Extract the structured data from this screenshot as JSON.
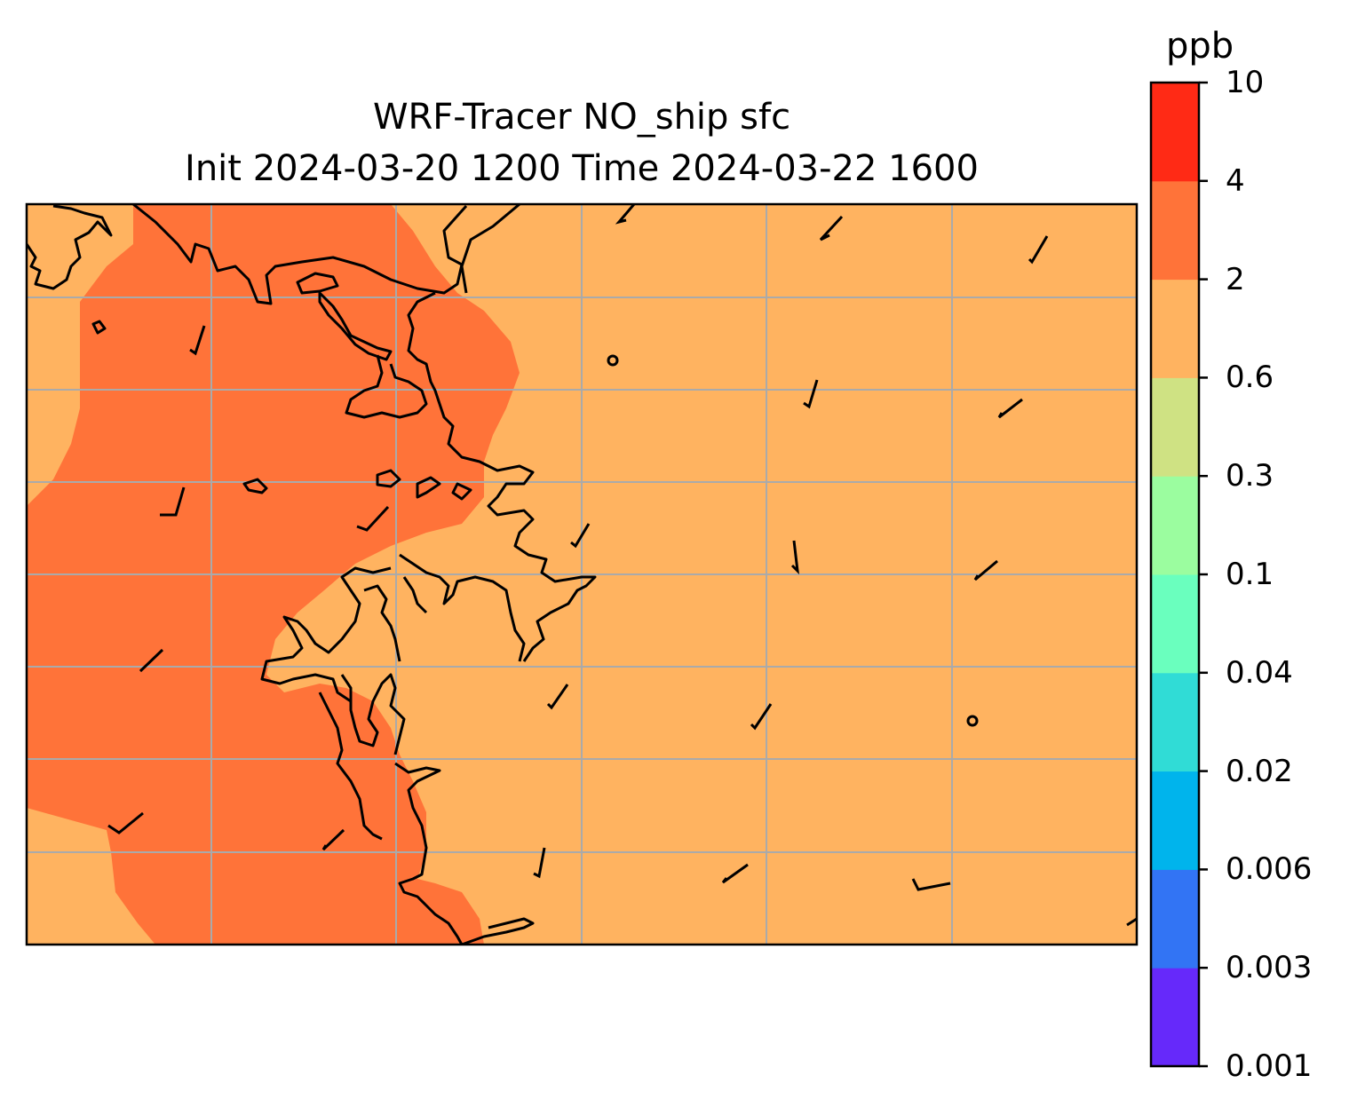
{
  "title": "WRF-Tracer NO_ship sfc",
  "subtitle": "Init 2024-03-20 1200 Time 2024-03-22 1600",
  "colorbar": {
    "unit": "ppb",
    "ticks": [
      "0.001",
      "0.003",
      "0.006",
      "0.02",
      "0.04",
      "0.1",
      "0.3",
      "0.6",
      "2",
      "4",
      "10"
    ],
    "colors": [
      "#6629fa",
      "#3274f4",
      "#00b4ec",
      "#30dcd6",
      "#6affbe",
      "#9bfd9f",
      "#cfe283",
      "#ffb360",
      "#ff7339",
      "#ff2a15"
    ]
  },
  "map": {
    "field": "NO_ship",
    "level": "sfc",
    "fill_colors": {
      "low_region": "#ffb360",
      "high_region": "#ff7339"
    },
    "coastline_color": "#000000",
    "gridline_color": "#aaaaaa",
    "wind_barbs": "shown"
  }
}
